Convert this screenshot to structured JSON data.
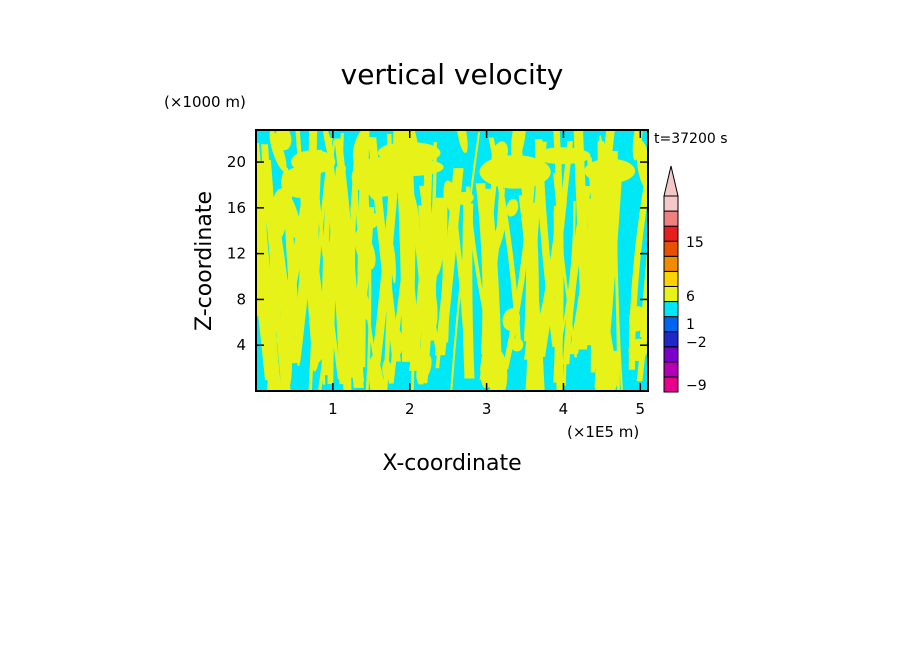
{
  "chart_data": {
    "type": "heatmap",
    "title": "vertical velocity",
    "xlabel": "X-coordinate",
    "ylabel": "Z-coordinate",
    "x_unit": "(×1E5 m)",
    "y_unit": "(×1000 m)",
    "time_label": "t=37200 s",
    "xlim": [
      0,
      5.1
    ],
    "ylim": [
      0,
      22.8
    ],
    "x_ticks": [
      "1",
      "2",
      "3",
      "4",
      "5"
    ],
    "y_ticks": [
      "4",
      "8",
      "12",
      "16",
      "20"
    ],
    "dominant_fill": {
      "positive": "#e6f218",
      "negative": "#00e8f6"
    },
    "colorbar": {
      "labels": [
        "15",
        "6",
        "1",
        "−2",
        "−9"
      ],
      "bands": [
        "#e6008c",
        "#b400b4",
        "#7800c8",
        "#1e28c8",
        "#0064f0",
        "#00e8f6",
        "#e6f218",
        "#ffd200",
        "#f08c00",
        "#e65000",
        "#e61e1e",
        "#f08080",
        "#f5c8c8"
      ],
      "extend": "max"
    }
  }
}
